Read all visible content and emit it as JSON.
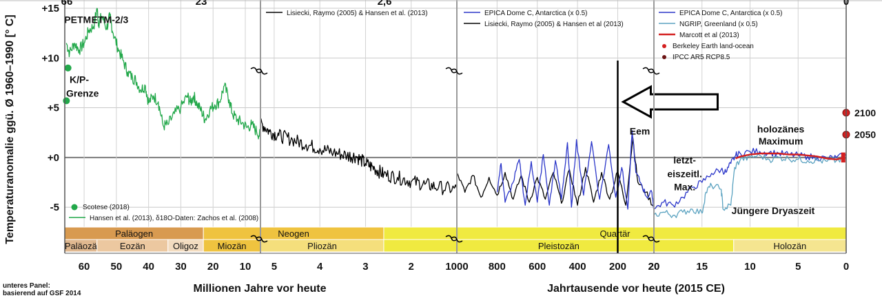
{
  "chart_data": {
    "type": "line",
    "ylabel": "Temperaturanomalie ggü. Ø 1960–1990 [° C]",
    "xlabel_left": "Millionen Jahre vor heute",
    "xlabel_right": "Jahrtausende vor heute (2015 CE)",
    "ylim": [
      -7,
      15
    ],
    "y_ticks": [
      {
        "v": 15,
        "label": "+15"
      },
      {
        "v": 10,
        "label": "+10"
      },
      {
        "v": 5,
        "label": "+5"
      },
      {
        "v": 0,
        "label": "+0"
      },
      {
        "v": -5,
        "label": "-5"
      }
    ],
    "top_ticks": [
      "66",
      "23",
      "2,6",
      "0"
    ],
    "panels": [
      {
        "id": "p1",
        "x_unit": "Millionen Jahre",
        "xlim": [
          66,
          5.3
        ],
        "ticks": [
          60,
          50,
          40,
          30,
          20,
          10
        ]
      },
      {
        "id": "p2",
        "x_unit": "Millionen Jahre",
        "xlim": [
          5.3,
          1
        ],
        "ticks": [
          5,
          4,
          3,
          2
        ]
      },
      {
        "id": "p3",
        "x_unit": "Jahrtausende",
        "xlim": [
          1000,
          20
        ],
        "ticks": [
          1000,
          800,
          600,
          400,
          200,
          20
        ],
        "tick_labels": [
          "1000",
          "800",
          "600",
          "400",
          "200",
          "20"
        ]
      },
      {
        "id": "p4",
        "x_unit": "Jahrtausende",
        "xlim": [
          20,
          0
        ],
        "ticks": [
          20,
          15,
          10,
          5,
          0
        ]
      }
    ],
    "series": [
      {
        "name": "Hansen et al. (2013), δ18O-Daten: Zachos et al. (2008)",
        "color": "#22a84a",
        "panel": "p1",
        "points": [
          [
            65.5,
            11.5
          ],
          [
            64.5,
            10.5
          ],
          [
            63,
            11.5
          ],
          [
            61.5,
            10.8
          ],
          [
            60,
            11.5
          ],
          [
            58.5,
            12.8
          ],
          [
            57,
            13.2
          ],
          [
            56,
            15
          ],
          [
            55.5,
            13.5
          ],
          [
            54.5,
            14.2
          ],
          [
            53,
            13
          ],
          [
            52,
            14.2
          ],
          [
            51,
            12.5
          ],
          [
            49.5,
            11
          ],
          [
            48,
            9.8
          ],
          [
            46.5,
            8.6
          ],
          [
            45,
            8
          ],
          [
            44,
            7.8
          ],
          [
            42.5,
            6.8
          ],
          [
            41,
            7.2
          ],
          [
            40,
            5.5
          ],
          [
            38.5,
            6.2
          ],
          [
            37,
            5.6
          ],
          [
            35.5,
            3.2
          ],
          [
            34,
            3.3
          ],
          [
            32,
            4.4
          ],
          [
            30,
            5
          ],
          [
            28,
            6.2
          ],
          [
            27,
            5.5
          ],
          [
            26,
            6.2
          ],
          [
            25,
            5.4
          ],
          [
            23.5,
            4.6
          ],
          [
            22.5,
            3.8
          ],
          [
            21,
            4.8
          ],
          [
            19.5,
            5.3
          ],
          [
            18,
            5.6
          ],
          [
            16.5,
            7.2
          ],
          [
            15,
            5.8
          ],
          [
            14,
            4.4
          ],
          [
            12.5,
            3.8
          ],
          [
            11,
            3.5
          ],
          [
            9.5,
            3
          ],
          [
            8,
            3.3
          ],
          [
            6.5,
            2.6
          ],
          [
            5.4,
            2.2
          ]
        ]
      },
      {
        "name": "Lisiecki, Raymo (2005) & Hansen et al. (2013)",
        "color": "#000000",
        "panel": "p2",
        "points": [
          [
            5.3,
            3.5
          ],
          [
            5.1,
            2.6
          ],
          [
            4.9,
            2.2
          ],
          [
            4.6,
            1.8
          ],
          [
            4.3,
            1.3
          ],
          [
            4.0,
            0.9
          ],
          [
            3.7,
            0.5
          ],
          [
            3.4,
            0.2
          ],
          [
            3.2,
            0.1
          ],
          [
            3.0,
            -0.6
          ],
          [
            2.8,
            -1.1
          ],
          [
            2.6,
            -1.7
          ],
          [
            2.3,
            -2.0
          ],
          [
            2.0,
            -2.4
          ],
          [
            1.7,
            -2.7
          ],
          [
            1.4,
            -3.0
          ],
          [
            1.0,
            -3.2
          ]
        ]
      },
      {
        "name": "Lisiecki, Raymo (2005) & Hansen et al (2013)",
        "color": "#000000",
        "panel": "p3",
        "points": [
          [
            1000,
            -1.5
          ],
          [
            960,
            -3.5
          ],
          [
            920,
            -1.8
          ],
          [
            880,
            -4.0
          ],
          [
            840,
            -2.0
          ],
          [
            800,
            -3.8
          ],
          [
            760,
            -1.5
          ],
          [
            720,
            -4.2
          ],
          [
            680,
            -1.8
          ],
          [
            640,
            -4.5
          ],
          [
            600,
            -2.0
          ],
          [
            560,
            -4.2
          ],
          [
            520,
            -1.5
          ],
          [
            480,
            -4.6
          ],
          [
            440,
            -1.2
          ],
          [
            400,
            -4.8
          ],
          [
            360,
            -1.0
          ],
          [
            320,
            -4.5
          ],
          [
            280,
            -1.5
          ],
          [
            240,
            -4.2
          ],
          [
            200,
            -1.4
          ],
          [
            160,
            -4.8
          ],
          [
            125,
            2.0
          ],
          [
            100,
            -2.5
          ],
          [
            60,
            -3.5
          ],
          [
            20,
            -5.0
          ]
        ]
      },
      {
        "name": "EPICA Dome C, Antarctica (x 0.5)",
        "color": "#2a35c9",
        "panel": "p3",
        "points": [
          [
            800,
            -3.5
          ],
          [
            780,
            -0.6
          ],
          [
            760,
            -4.5
          ],
          [
            720,
            -2.5
          ],
          [
            690,
            -0.2
          ],
          [
            660,
            -4.8
          ],
          [
            630,
            -0.4
          ],
          [
            600,
            -4.5
          ],
          [
            570,
            0.3
          ],
          [
            540,
            -4.8
          ],
          [
            510,
            -0.3
          ],
          [
            480,
            -4.2
          ],
          [
            450,
            1.5
          ],
          [
            430,
            -5.0
          ],
          [
            405,
            1.8
          ],
          [
            370,
            -3.8
          ],
          [
            330,
            1.6
          ],
          [
            290,
            -4.2
          ],
          [
            245,
            1.3
          ],
          [
            210,
            -4.0
          ],
          [
            180,
            -1.0
          ],
          [
            150,
            -5.2
          ],
          [
            128,
            2.7
          ],
          [
            110,
            -1.5
          ],
          [
            80,
            -2.8
          ],
          [
            55,
            -4.0
          ],
          [
            30,
            -3.5
          ],
          [
            20,
            -5.2
          ]
        ]
      },
      {
        "name": "EPICA Dome C, Antarctica (x 0.5)",
        "color": "#2a35c9",
        "panel": "p4",
        "points": [
          [
            20,
            -5.2
          ],
          [
            19,
            -4.5
          ],
          [
            18,
            -4.8
          ],
          [
            17,
            -4.0
          ],
          [
            16,
            -3.0
          ],
          [
            15,
            -2.5
          ],
          [
            14,
            -1.6
          ],
          [
            13,
            -1.2
          ],
          [
            12.5,
            -1.5
          ],
          [
            12,
            -0.6
          ],
          [
            11.5,
            0.2
          ],
          [
            11,
            0.4
          ],
          [
            10,
            0.6
          ],
          [
            9,
            0.6
          ],
          [
            8,
            0.5
          ],
          [
            7,
            0.4
          ],
          [
            6,
            0.3
          ],
          [
            5,
            0.2
          ],
          [
            4,
            0.1
          ],
          [
            3,
            0.0
          ],
          [
            2,
            -0.1
          ],
          [
            1,
            0.0
          ],
          [
            0,
            0.2
          ]
        ]
      },
      {
        "name": "NGRIP, Greenland (x 0.5)",
        "color": "#5aa2c0",
        "panel": "p4",
        "points": [
          [
            20,
            -5.8
          ],
          [
            19,
            -5.5
          ],
          [
            18,
            -5.8
          ],
          [
            17,
            -5.5
          ],
          [
            16,
            -5.2
          ],
          [
            15,
            -5.6
          ],
          [
            14.6,
            -3.5
          ],
          [
            14,
            -2.8
          ],
          [
            13,
            -3.2
          ],
          [
            12.8,
            -5.2
          ],
          [
            12,
            -4.8
          ],
          [
            11.6,
            -1.0
          ],
          [
            11,
            -0.2
          ],
          [
            10,
            0.0
          ],
          [
            9,
            0.2
          ],
          [
            8,
            -0.2
          ],
          [
            7,
            0.0
          ],
          [
            6,
            -0.1
          ],
          [
            5,
            -0.2
          ],
          [
            4,
            -0.3
          ],
          [
            3,
            -0.3
          ],
          [
            2,
            -0.4
          ],
          [
            1,
            -0.3
          ],
          [
            0,
            -0.2
          ]
        ]
      },
      {
        "name": "Marcott et al (2013)",
        "color": "#d42020",
        "panel": "p4",
        "points": [
          [
            11.5,
            -0.1
          ],
          [
            11,
            0.1
          ],
          [
            10,
            0.3
          ],
          [
            9,
            0.4
          ],
          [
            8,
            0.4
          ],
          [
            7,
            0.4
          ],
          [
            6,
            0.3
          ],
          [
            5,
            0.3
          ],
          [
            4,
            0.2
          ],
          [
            3,
            0.1
          ],
          [
            2,
            -0.1
          ],
          [
            1,
            -0.2
          ],
          [
            0.2,
            0.0
          ]
        ]
      }
    ],
    "points": [
      {
        "name": "Scotese (2018)",
        "color": "#22a84a",
        "panel": "p1",
        "x": 65,
        "y": 9
      },
      {
        "name": "Scotese (2018)",
        "color": "#22a84a",
        "panel": "p1",
        "x": 65.5,
        "y": 5.7
      },
      {
        "name": "IPCC AR5 RCP8.5 2050",
        "color": "#d42020",
        "panel": "p4",
        "x": 0,
        "y": 2.3,
        "label": "2050"
      },
      {
        "name": "IPCC AR5 RCP8.5 2100",
        "color": "#d42020",
        "panel": "p4",
        "x": 0,
        "y": 4.5,
        "label": "2100"
      }
    ],
    "legends": [
      {
        "panel": "p1",
        "position": "bottom-left",
        "items": [
          {
            "label": "Scotese (2018)",
            "color": "#22a84a",
            "kind": "dot"
          },
          {
            "label": "Hansen et al. (2013), δ18O-Daten: Zachos et al. (2008)",
            "color": "#22a84a",
            "kind": "line"
          }
        ]
      },
      {
        "panel": "p2",
        "position": "top-left",
        "items": [
          {
            "label": "Lisiecki, Raymo (2005) & Hansen et al. (2013)",
            "color": "#000000",
            "kind": "line"
          }
        ]
      },
      {
        "panel": "p3",
        "position": "top-left",
        "items": [
          {
            "label": "EPICA Dome C, Antarctica (x 0.5)",
            "color": "#2a35c9",
            "kind": "line"
          },
          {
            "label": "Lisiecki, Raymo (2005) & Hansen et al (2013)",
            "color": "#000000",
            "kind": "line"
          }
        ]
      },
      {
        "panel": "p4",
        "position": "top-left",
        "items": [
          {
            "label": "EPICA Dome C, Antarctica (x 0.5)",
            "color": "#2a35c9",
            "kind": "line"
          },
          {
            "label": "NGRIP, Greenland (x 0.5)",
            "color": "#5aa2c0",
            "kind": "line"
          },
          {
            "label": "Marcott et al (2013)",
            "color": "#d42020",
            "kind": "thickline"
          },
          {
            "label": "Berkeley Earth land-ocean",
            "color": "#d42020",
            "kind": "dot"
          },
          {
            "label": "IPCC AR5 RCP8.5",
            "color": "#6b1414",
            "kind": "dot"
          }
        ]
      }
    ],
    "annotations": [
      {
        "text": "PETM",
        "panel": "p1",
        "x": 62,
        "y": 13.5
      },
      {
        "text": "ETM-2/3",
        "panel": "p1",
        "x": 52,
        "y": 13.5
      },
      {
        "text": "K/P-",
        "panel": "p1",
        "x": 61.5,
        "y": 7.5
      },
      {
        "text": "Grenze",
        "panel": "p1",
        "x": 60.5,
        "y": 6.1
      },
      {
        "text": "Eem",
        "panel": "p3",
        "x": 90,
        "y": 2.3
      },
      {
        "text": "letzt-",
        "panel": "p4",
        "x": 16.8,
        "y": -0.6
      },
      {
        "text": "eiszeitl.",
        "panel": "p4",
        "x": 16.8,
        "y": -2.0
      },
      {
        "text": "Max.",
        "panel": "p4",
        "x": 16.8,
        "y": -3.3
      },
      {
        "text": "holozänes",
        "panel": "p4",
        "x": 6.8,
        "y": 2.5
      },
      {
        "text": "Maximum",
        "panel": "p4",
        "x": 6.8,
        "y": 1.3
      },
      {
        "text": "Jüngere Dryaszeit",
        "panel": "p4",
        "x": 7.6,
        "y": -5.7
      }
    ],
    "arrow": {
      "panel": "p3",
      "direction": "left",
      "x_start": 0,
      "x_end": 200
    },
    "marker_line": {
      "panel": "p3",
      "x": 200
    },
    "periods_top": [
      {
        "label": "Paläogen",
        "from": 66,
        "to": 23,
        "color": "#d89a50"
      },
      {
        "label": "Neogen",
        "from": 23,
        "to": 2.6,
        "color": "#efc33f"
      },
      {
        "label": "Quartär",
        "from": 2.6,
        "to": 0,
        "color": "#f0ea40"
      }
    ],
    "periods_bottom": [
      {
        "label": "Paläozä",
        "from": 66,
        "to": 56,
        "color": "#e0b890"
      },
      {
        "label": "Eozän",
        "from": 56,
        "to": 34,
        "color": "#ecc8a0"
      },
      {
        "label": "Oligoz",
        "from": 34,
        "to": 23,
        "color": "#f3dcc0"
      },
      {
        "label": "Miozän",
        "from": 23,
        "to": 5.3,
        "color": "#efc33f"
      },
      {
        "label": "Pliozän",
        "from": 5.3,
        "to": 2.6,
        "color": "#f5df7c"
      },
      {
        "label": "Pleistozän",
        "from": 2.6,
        "to": 0.0117,
        "color": "#f0ea40"
      },
      {
        "label": "Holozän",
        "from": 0.0117,
        "to": 0,
        "color": "#f5e590"
      }
    ],
    "grid": true,
    "footnote": [
      "unteres Panel:",
      "basierend auf GSF 2014"
    ]
  }
}
